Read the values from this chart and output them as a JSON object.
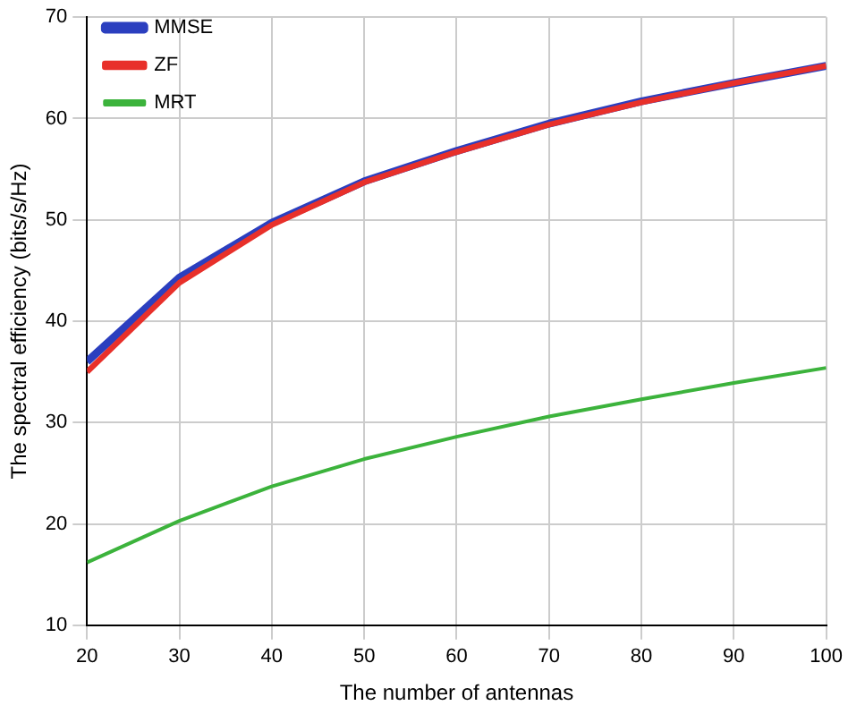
{
  "chart_data": {
    "type": "line",
    "xlabel": "The number of antennas",
    "ylabel": "The spectral efficiency (bits/s/Hz)",
    "x": [
      20,
      30,
      40,
      50,
      60,
      70,
      80,
      90,
      100
    ],
    "series": [
      {
        "name": "MMSE",
        "color": "#2b3fbf",
        "values": [
          36,
          44.3,
          49.7,
          53.8,
          56.8,
          59.5,
          61.7,
          63.5,
          65.2
        ]
      },
      {
        "name": "ZF",
        "color": "#e8302a",
        "values": [
          35,
          43.8,
          49.5,
          53.7,
          56.7,
          59.4,
          61.6,
          63.5,
          65.2
        ]
      },
      {
        "name": "MRT",
        "color": "#3cb33c",
        "values": [
          16.2,
          20.3,
          23.7,
          26.4,
          28.6,
          30.6,
          32.3,
          33.9,
          35.4
        ]
      }
    ],
    "xlim": [
      20,
      100
    ],
    "xticks": [
      20,
      30,
      40,
      50,
      60,
      70,
      80,
      90,
      100
    ],
    "ylim": [
      10,
      70
    ],
    "yticks": [
      10,
      20,
      30,
      40,
      50,
      60,
      70
    ],
    "grid": true,
    "legend": "top left",
    "marker": "none",
    "line_style": "solid"
  }
}
